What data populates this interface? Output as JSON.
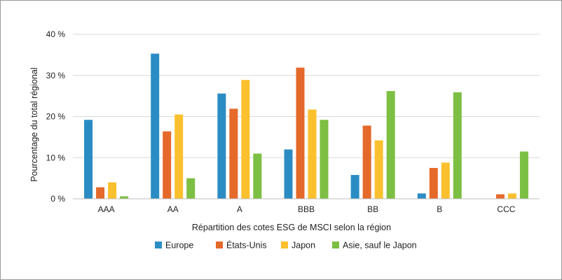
{
  "chart_data": {
    "type": "bar",
    "title": "",
    "xlabel": "Répartition des cotes ESG de MSCI selon la région",
    "ylabel": "Pourcentage du total régional",
    "categories": [
      "AAA",
      "AA",
      "A",
      "BBB",
      "BB",
      "B",
      "CCC"
    ],
    "ylim": [
      0,
      40
    ],
    "yticks": [
      {
        "value": 0,
        "label": "0 %"
      },
      {
        "value": 10,
        "label": "10 %"
      },
      {
        "value": 20,
        "label": "20 %"
      },
      {
        "value": 30,
        "label": "30 %"
      },
      {
        "value": 40,
        "label": "40 %"
      }
    ],
    "grid": true,
    "legend_position": "bottom",
    "series": [
      {
        "name": "Europe",
        "color": "#2b8cc4",
        "values": [
          19.2,
          35.3,
          25.6,
          12.0,
          5.8,
          1.3,
          0
        ]
      },
      {
        "name": "États-Unis",
        "color": "#e4692a",
        "values": [
          2.8,
          16.4,
          21.9,
          31.9,
          17.8,
          7.5,
          1.1
        ]
      },
      {
        "name": "Japon",
        "color": "#fbc02d",
        "values": [
          4.0,
          20.5,
          28.9,
          21.7,
          14.2,
          8.8,
          1.3
        ]
      },
      {
        "name": "Asie, sauf le Japon",
        "color": "#7cbf43",
        "values": [
          0.6,
          5.0,
          11.0,
          19.2,
          26.2,
          25.9,
          11.5
        ]
      }
    ]
  }
}
